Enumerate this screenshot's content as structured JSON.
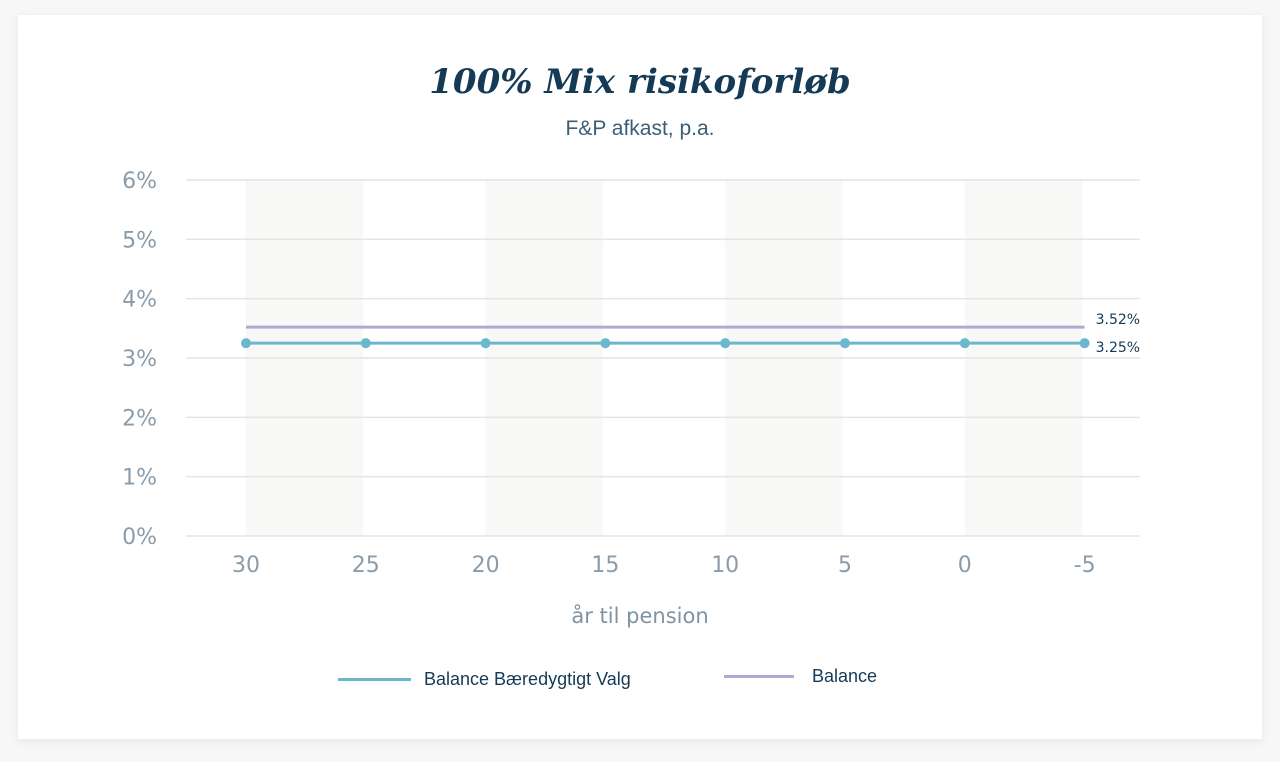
{
  "chart_data": {
    "type": "line",
    "title": "100% Mix risikoforløb",
    "subtitle": "F&P afkast, p.a.",
    "xlabel": "år til pension",
    "ylabel": "",
    "categories": [
      "30",
      "25",
      "20",
      "15",
      "10",
      "5",
      "0",
      "-5"
    ],
    "y_ticks": [
      "0%",
      "1%",
      "2%",
      "3%",
      "4%",
      "5%",
      "6%"
    ],
    "ylim": [
      0,
      6
    ],
    "grid": true,
    "alternating_column_bands": true,
    "legend_position": "bottom",
    "series": [
      {
        "name": "Balance Bæredygtigt Valg",
        "values": [
          3.25,
          3.25,
          3.25,
          3.25,
          3.25,
          3.25,
          3.25,
          3.25
        ],
        "color": "#6bb8ce",
        "markers": true,
        "end_label": "3.25%"
      },
      {
        "name": "Balance",
        "values": [
          3.52,
          3.52,
          3.52,
          3.52,
          3.52,
          3.52,
          3.52,
          3.52
        ],
        "color": "#b6a6d4",
        "markers": false,
        "end_label": "3.52%"
      }
    ]
  },
  "colors": {
    "gridline": "#e4e4e4",
    "band": "#f8f8f6",
    "axis_text": "#8a9caa",
    "title": "#153a56"
  }
}
